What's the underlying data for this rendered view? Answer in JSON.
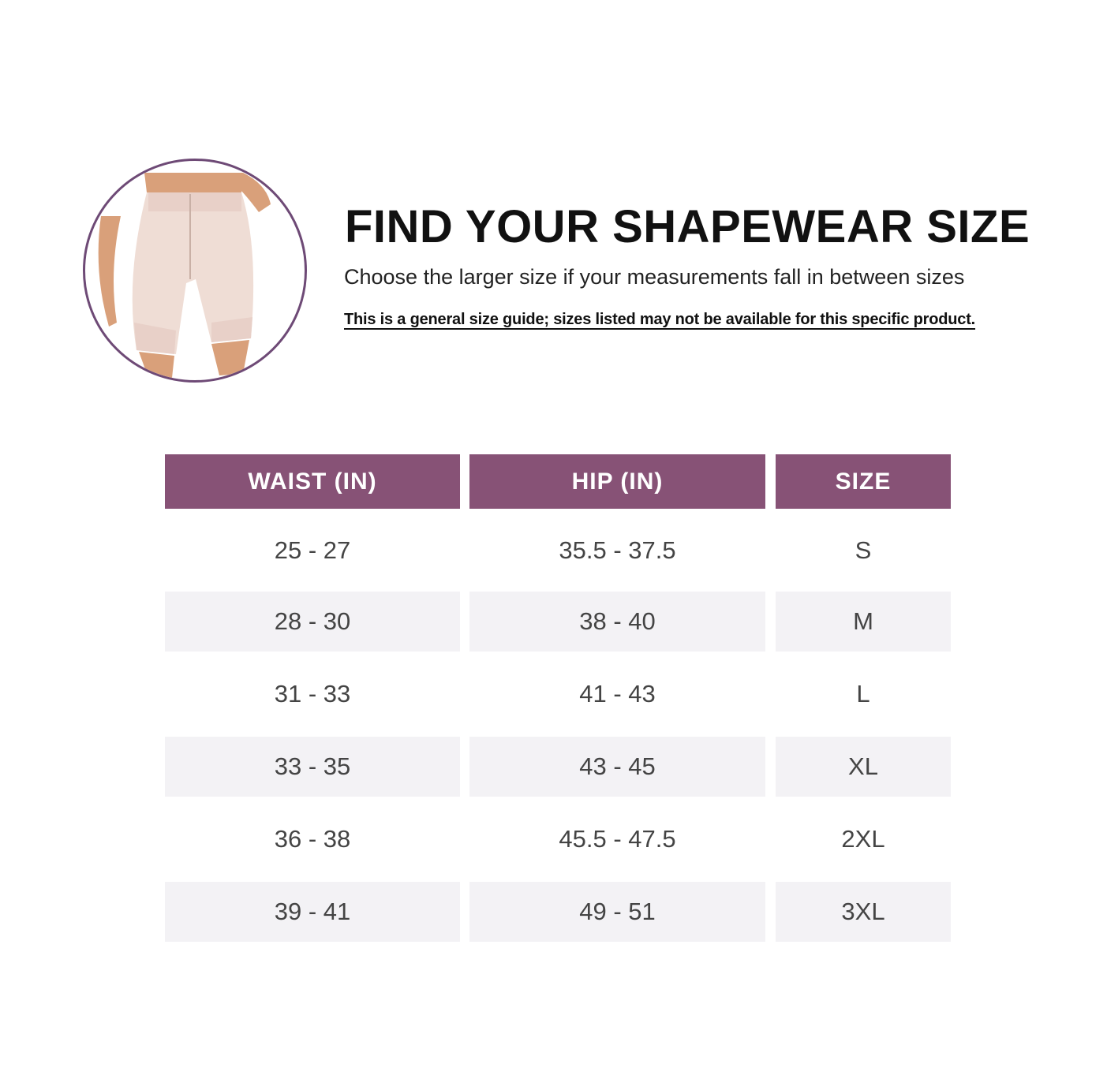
{
  "header": {
    "title": "FIND YOUR SHAPEWEAR SIZE",
    "subtitle": "Choose the larger size if your measurements fall in between sizes",
    "note": "This is a general size guide; sizes listed may not be available for this specific product."
  },
  "colors": {
    "accent": "#875276",
    "circle_border": "#6e4a76",
    "stripe": "#f3f2f5"
  },
  "table": {
    "columns": [
      "WAIST (IN)",
      "HIP (IN)",
      "SIZE"
    ],
    "rows": [
      [
        "25 - 27",
        "35.5 - 37.5",
        "S"
      ],
      [
        "28 - 30",
        "38 - 40",
        "M"
      ],
      [
        "31 - 33",
        "41 - 43",
        "L"
      ],
      [
        "33 - 35",
        "43 - 45",
        "XL"
      ],
      [
        "36 - 38",
        "45.5 - 47.5",
        "2XL"
      ],
      [
        "39 - 41",
        "49 - 51",
        "3XL"
      ]
    ]
  }
}
